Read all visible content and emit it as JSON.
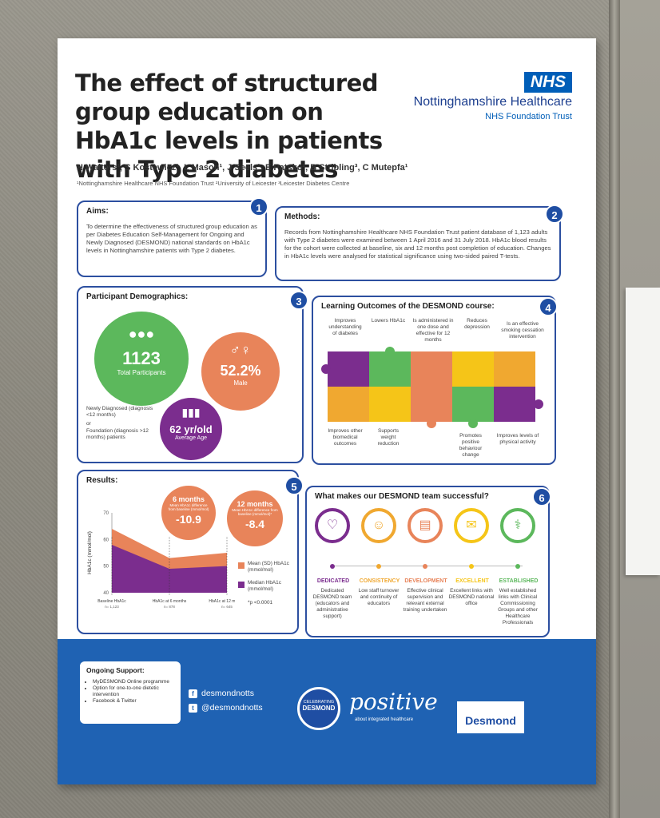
{
  "poster": {
    "title": "The effect of structured group education on HbA1c levels in patients with Type 2 diabetes",
    "nhs_logo": "NHS",
    "org_name": "Nottinghamshire Healthcare",
    "org_sub": "NHS Foundation Trust",
    "authors": "H Walters¹, S Kostewicz¹, L Mason¹, J Seels¹, E Patsko², B Stribling³, C Mutepfa¹",
    "affiliations": "¹Nottinghamshire Healthcare NHS Foundation Trust ²University of Leicester ³Leicester Diabetes Centre"
  },
  "aims": {
    "num": "1",
    "heading": "Aims:",
    "text": "To determine the effectiveness of structured group education as per Diabetes Education Self-Management for Ongoing and Newly Diagnosed (DESMOND) national standards on HbA1c levels in Nottinghamshire patients with Type 2 diabetes."
  },
  "methods": {
    "num": "2",
    "heading": "Methods:",
    "text": "Records from Nottinghamshire Healthcare NHS Foundation Trust patient database of 1,123 adults with Type 2 diabetes were examined between 1 April 2016 and 31 July 2018. HbA1c blood results for the cohort were collected at baseline, six and 12 months post completion of education. Changes in HbA1c levels were analysed for statistical significance using two-sided paired T-tests."
  },
  "demographics": {
    "num": "3",
    "heading": "Participant Demographics:",
    "total_value": "1123",
    "total_label": "Total Participants",
    "male_value": "52.2%",
    "male_label": "Male",
    "age_value": "62 yr/old",
    "age_label": "Average Age",
    "note_newly": "Newly Diagnosed (diagnosis <12 months)",
    "note_or": "or",
    "note_foundation": "Foundation (diagnosis >12 months) patients",
    "colors": {
      "green": "#5cb85c",
      "orange": "#e8845a",
      "purple": "#7b2d8e"
    }
  },
  "learning": {
    "num": "4",
    "heading": "Learning Outcomes of the DESMOND course:",
    "top_labels": [
      "Improves understanding of diabetes",
      "Lowers HbA1c",
      "Is administered in one dose and effective for 12 months",
      "Reduces depression",
      "Is an effective smoking cessation intervention"
    ],
    "bottom_labels": [
      "Improves other biomedical outcomes",
      "Supports weight reduction",
      "Promotes positive behaviour change",
      "Improves levels of physical activity"
    ]
  },
  "results": {
    "num": "5",
    "heading": "Results:",
    "six_title": "6 months",
    "six_sub": "Mean HbA1c difference from baseline (mmol/mol)",
    "six_value": "-10.9",
    "twelve_title": "12 months",
    "twelve_sub": "Mean HbA1c difference from baseline (mmol/mol)*",
    "twelve_value": "-8.4",
    "legend_mean": "Mean (SD) HbA1c (mmol/mol)",
    "legend_median": "Median HbA1c (mmol/mol)",
    "pvalue": "*p <0.0001"
  },
  "chart_data": {
    "type": "area",
    "ylabel": "HbA1c (mmol/mol)",
    "ylim": [
      40,
      70
    ],
    "yticks": [
      "70",
      "60",
      "50",
      "40"
    ],
    "categories": [
      "Baseline HbA1c",
      "HbA1c at 6 months",
      "HbA1c at 12 months"
    ],
    "category_n": [
      "n= 1,123",
      "n= 878",
      "n= 645"
    ],
    "series": [
      {
        "name": "Mean (SD) HbA1c (mmol/mol)",
        "values": [
          64,
          53,
          55
        ],
        "color": "#e8845a"
      },
      {
        "name": "Median HbA1c (mmol/mol)",
        "values": [
          58,
          49,
          50
        ],
        "color": "#7b2d8e"
      }
    ]
  },
  "team": {
    "num": "6",
    "heading": "What makes our DESMOND team successful?",
    "items": [
      {
        "title": "DEDICATED",
        "desc": "Dedicated DESMOND team (educators and administrative support)",
        "color": "#7b2d8e",
        "icon": "heart-icon"
      },
      {
        "title": "CONSISTENCY",
        "desc": "Low staff turnover and continuity of educators",
        "color": "#f0a830",
        "icon": "people-icon"
      },
      {
        "title": "DEVELOPMENT",
        "desc": "Effective clinical supervision and relevant external training undertaken",
        "color": "#e8845a",
        "icon": "presentation-icon"
      },
      {
        "title": "EXCELLENT",
        "desc": "Excellent links with DESMOND national office",
        "color": "#f5c518",
        "icon": "chat-icon"
      },
      {
        "title": "ESTABLISHED",
        "desc": "Well established links with Clinical Commissioning Groups and other Healthcare Professionals",
        "color": "#5cb85c",
        "icon": "stethoscope-icon"
      }
    ]
  },
  "footer": {
    "support_heading": "Ongoing Support:",
    "support_items": [
      "MyDESMOND Online programme",
      "Option for one-to-one dietetic intervention",
      "Facebook & Twitter"
    ],
    "facebook": "desmondnotts",
    "twitter": "@desmondnotts",
    "badge_top": "CELEBRATING",
    "badge_main": "DESMOND",
    "positive": "positive",
    "positive_sub": "about integrated healthcare",
    "desmond_logo": "Desmond"
  }
}
